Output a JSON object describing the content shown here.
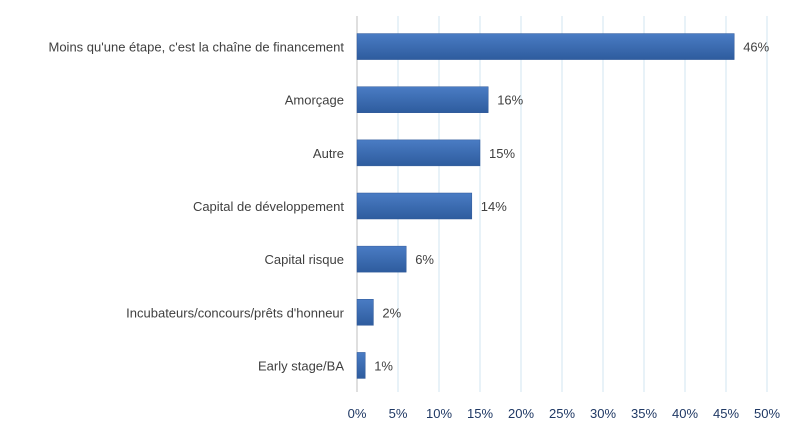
{
  "chart_data": {
    "type": "bar",
    "orientation": "horizontal",
    "categories": [
      "Moins qu'une étape, c'est la chaîne de financement",
      "Amorçage",
      "Autre",
      "Capital de développement",
      "Capital risque",
      "Incubateurs/concours/prêts d'honneur",
      "Early stage/BA"
    ],
    "values": [
      46,
      16,
      15,
      14,
      6,
      2,
      1
    ],
    "value_labels": [
      "46%",
      "16%",
      "15%",
      "14%",
      "6%",
      "2%",
      "1%"
    ],
    "xlim": [
      0,
      50
    ],
    "x_ticks": [
      0,
      5,
      10,
      15,
      20,
      25,
      30,
      35,
      40,
      45,
      50
    ],
    "x_tick_labels": [
      "0%",
      "5%",
      "10%",
      "15%",
      "20%",
      "25%",
      "30%",
      "35%",
      "40%",
      "45%",
      "50%"
    ],
    "title": "",
    "xlabel": "",
    "ylabel": "",
    "grid": true,
    "legend": "none",
    "colors": {
      "bar": "#3d6eb4",
      "bar_dark": "#2e5797",
      "grid": "#d0e4f2",
      "text": "#404040",
      "tick_text": "#1f3864"
    }
  }
}
